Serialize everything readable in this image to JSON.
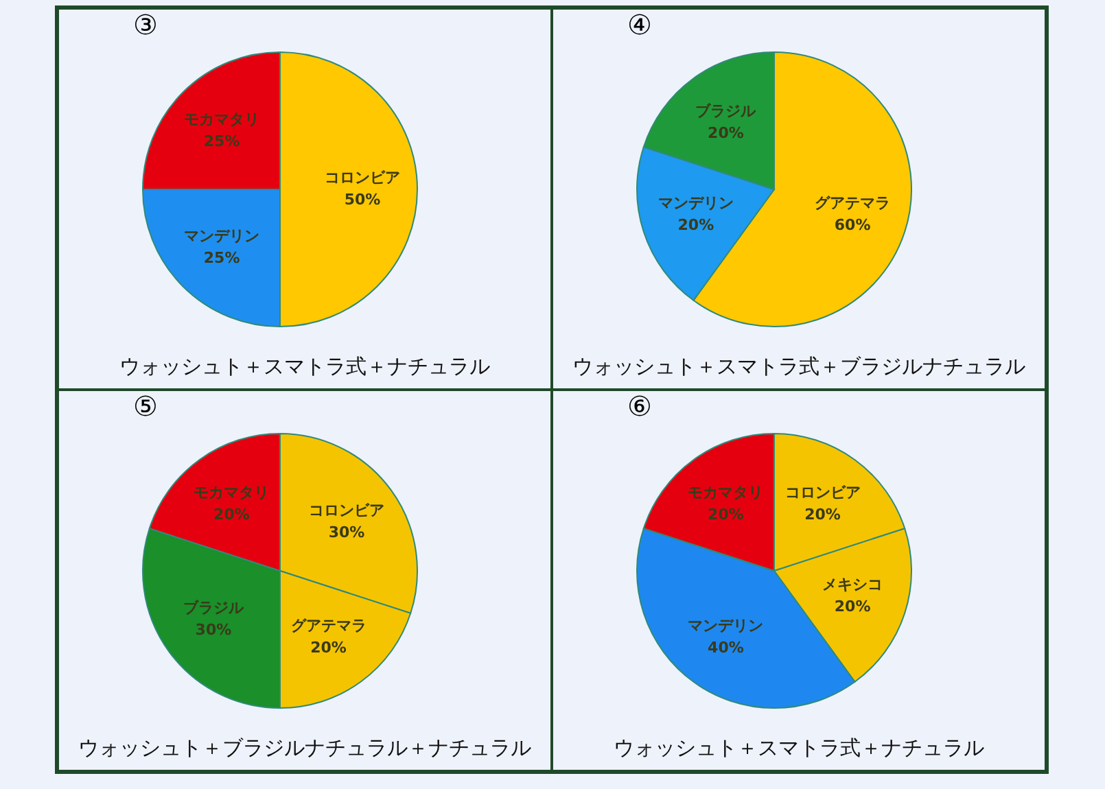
{
  "chart_data": [
    {
      "type": "pie",
      "title": "③",
      "categories": [
        "コロンビア",
        "マンデリン",
        "モカマタリ"
      ],
      "values": [
        50,
        25,
        25
      ],
      "colors": [
        "#ffc800",
        "#1e8ff0",
        "#e5000f"
      ],
      "value_labels": [
        "50%",
        "25%",
        "25%"
      ],
      "annotations": [
        "ウォッシュト＋スマトラ式＋ナチュラル"
      ]
    },
    {
      "type": "pie",
      "title": "④",
      "categories": [
        "グアテマラ",
        "マンデリン",
        "ブラジル"
      ],
      "values": [
        60,
        20,
        20
      ],
      "colors": [
        "#ffc800",
        "#1e9af0",
        "#1f9a3a"
      ],
      "value_labels": [
        "60%",
        "20%",
        "20%"
      ],
      "annotations": [
        "ウォッシュト＋スマトラ式＋ブラジルナチュラル"
      ]
    },
    {
      "type": "pie",
      "title": "⑤",
      "categories": [
        "コロンビア",
        "グアテマラ",
        "ブラジル",
        "モカマタリ"
      ],
      "values": [
        30,
        20,
        30,
        20
      ],
      "colors": [
        "#f5c400",
        "#f5c400",
        "#1a8f2a",
        "#e5000f"
      ],
      "value_labels": [
        "30%",
        "20%",
        "30%",
        "20%"
      ],
      "annotations": [
        "ウォッシュト＋ブラジルナチュラル＋ナチュラル"
      ]
    },
    {
      "type": "pie",
      "title": "⑥",
      "categories": [
        "コロンビア",
        "メキシコ",
        "マンデリン",
        "モカマタリ"
      ],
      "values": [
        20,
        20,
        40,
        20
      ],
      "colors": [
        "#f5c400",
        "#f5c400",
        "#1e88f0",
        "#e5000f"
      ],
      "value_labels": [
        "20%",
        "20%",
        "40%",
        "20%"
      ],
      "annotations": [
        "ウォッシュト＋スマトラ式＋ナチュラル"
      ]
    }
  ]
}
